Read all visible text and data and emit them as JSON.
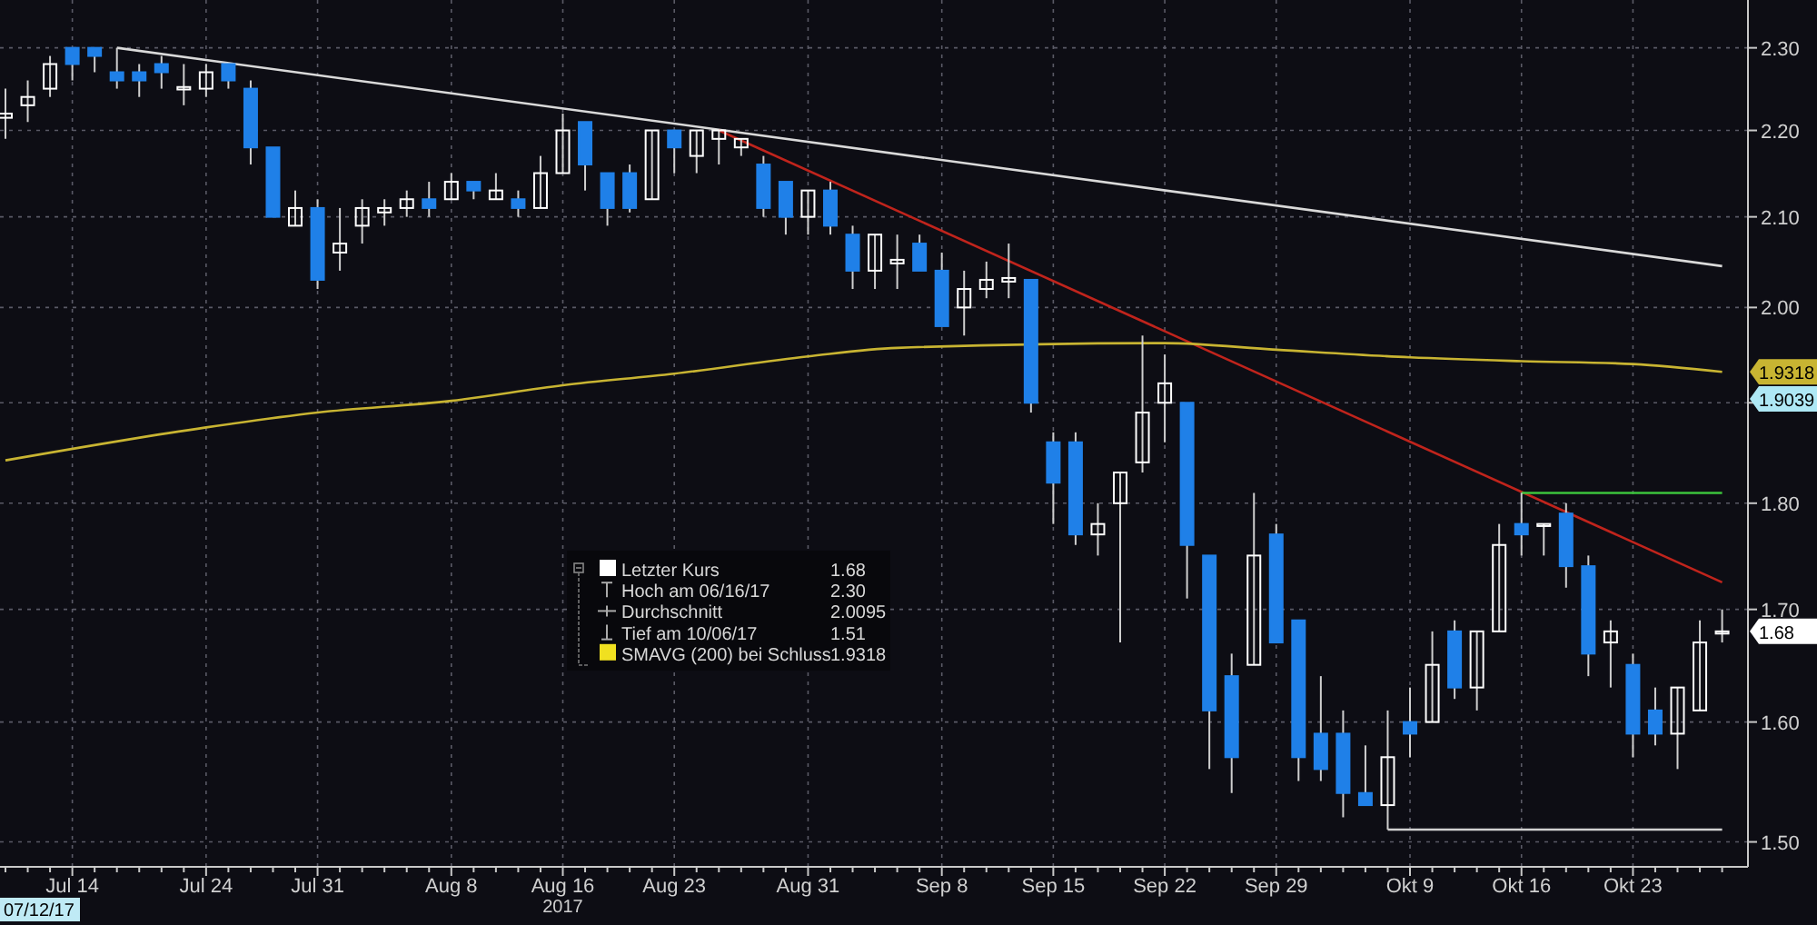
{
  "chart_data": {
    "type": "candlestick",
    "log": true,
    "grid": true,
    "ylim": [
      1.48,
      2.36
    ],
    "yticks": [
      {
        "value": 1.5,
        "label": "1.50"
      },
      {
        "value": 1.6,
        "label": "1.60"
      },
      {
        "value": 1.7,
        "label": "1.70"
      },
      {
        "value": 1.8,
        "label": "1.80"
      },
      {
        "value": 1.9,
        "label": null
      },
      {
        "value": 2,
        "label": "2.00"
      },
      {
        "value": 2.1,
        "label": "2.10"
      },
      {
        "value": 2.2,
        "label": "2.20"
      },
      {
        "value": 2.3,
        "label": "2.30"
      }
    ],
    "colors": [
      "#ffffff",
      "#ffffff",
      "#ffffff",
      "#1f80e8",
      "#1f80e8",
      "#1f80e8",
      "#1f80e8",
      "#1f80e8",
      "#ffffff",
      "#ffffff",
      "#1f80e8",
      "#1f80e8",
      "#1f80e8",
      "#ffffff",
      "#1f80e8",
      "#ffffff",
      "#ffffff",
      "#ffffff",
      "#ffffff",
      "#1f80e8",
      "#ffffff",
      "#1f80e8",
      "#ffffff",
      "#1f80e8",
      "#ffffff",
      "#ffffff",
      "#1f80e8",
      "#1f80e8",
      "#1f80e8",
      "#ffffff",
      "#1f80e8",
      "#ffffff",
      "#ffffff",
      "#ffffff",
      "#1f80e8",
      "#1f80e8",
      "#ffffff",
      "#1f80e8",
      "#1f80e8",
      "#ffffff",
      "#ffffff",
      "#1f80e8",
      "#1f80e8",
      "#ffffff",
      "#ffffff",
      "#ffffff",
      "#1f80e8",
      "#1f80e8",
      "#1f80e8",
      "#ffffff",
      "#ffffff",
      "#ffffff",
      "#ffffff",
      "#1f80e8",
      "#1f80e8",
      "#1f80e8",
      "#ffffff",
      "#1f80e8",
      "#1f80e8",
      "#1f80e8",
      "#1f80e8",
      "#1f80e8",
      "#ffffff",
      "#1f80e8",
      "#ffffff",
      "#1f80e8",
      "#ffffff",
      "#ffffff",
      "#1f80e8",
      "#ffffff",
      "#1f80e8",
      "#1f80e8",
      "#ffffff",
      "#1f80e8",
      "#1f80e8",
      "#ffffff",
      "#ffffff",
      "#ffffff"
    ],
    "categories": [
      null,
      null,
      null,
      "Jul 14",
      null,
      null,
      null,
      null,
      null,
      "Jul 24",
      null,
      null,
      null,
      null,
      "Jul 31",
      null,
      null,
      null,
      null,
      null,
      "Aug 8",
      null,
      null,
      null,
      null,
      "Aug 16",
      null,
      null,
      null,
      null,
      "Aug 23",
      null,
      null,
      null,
      null,
      null,
      "Aug 31",
      null,
      null,
      null,
      null,
      null,
      "Sep 8",
      null,
      null,
      null,
      null,
      "Sep 15",
      null,
      null,
      null,
      null,
      "Sep 22",
      null,
      null,
      null,
      null,
      "Sep 29",
      null,
      null,
      null,
      null,
      null,
      "Okt 9",
      null,
      null,
      null,
      null,
      "Okt 16",
      null,
      null,
      null,
      null,
      "Okt 23",
      null,
      null,
      null,
      null
    ],
    "ohlc": [
      [
        2.215,
        2.25,
        2.19,
        2.22
      ],
      [
        2.23,
        2.26,
        2.21,
        2.24
      ],
      [
        2.25,
        2.29,
        2.24,
        2.28
      ],
      [
        2.3,
        2.3,
        2.26,
        2.28
      ],
      [
        2.3,
        2.3,
        2.27,
        2.29
      ],
      [
        2.27,
        2.3,
        2.25,
        2.26
      ],
      [
        2.27,
        2.28,
        2.24,
        2.26
      ],
      [
        2.28,
        2.29,
        2.25,
        2.27
      ],
      [
        2.249,
        2.28,
        2.23,
        2.252
      ],
      [
        2.25,
        2.28,
        2.24,
        2.27
      ],
      [
        2.28,
        2.28,
        2.25,
        2.26
      ],
      [
        2.25,
        2.26,
        2.16,
        2.18
      ],
      [
        2.18,
        2.18,
        2.1,
        2.1
      ],
      [
        2.09,
        2.13,
        2.09,
        2.11
      ],
      [
        2.11,
        2.12,
        2.02,
        2.03
      ],
      [
        2.06,
        2.11,
        2.04,
        2.07
      ],
      [
        2.09,
        2.12,
        2.07,
        2.11
      ],
      [
        2.105,
        2.12,
        2.09,
        2.11
      ],
      [
        2.11,
        2.13,
        2.1,
        2.12
      ],
      [
        2.12,
        2.14,
        2.1,
        2.11
      ],
      [
        2.12,
        2.15,
        2.12,
        2.14
      ],
      [
        2.14,
        2.14,
        2.12,
        2.13
      ],
      [
        2.12,
        2.15,
        2.12,
        2.13
      ],
      [
        2.12,
        2.13,
        2.1,
        2.11
      ],
      [
        2.11,
        2.17,
        2.11,
        2.15
      ],
      [
        2.15,
        2.22,
        2.15,
        2.2
      ],
      [
        2.21,
        2.21,
        2.13,
        2.16
      ],
      [
        2.15,
        2.15,
        2.09,
        2.11
      ],
      [
        2.15,
        2.16,
        2.105,
        2.11
      ],
      [
        2.12,
        2.2,
        2.12,
        2.2
      ],
      [
        2.2,
        2.2,
        2.15,
        2.18
      ],
      [
        2.17,
        2.2,
        2.15,
        2.2
      ],
      [
        2.19,
        2.2,
        2.16,
        2.2
      ],
      [
        2.18,
        2.19,
        2.17,
        2.19
      ],
      [
        2.16,
        2.17,
        2.1,
        2.11
      ],
      [
        2.14,
        2.14,
        2.08,
        2.1
      ],
      [
        2.1,
        2.13,
        2.08,
        2.13
      ],
      [
        2.13,
        2.14,
        2.08,
        2.09
      ],
      [
        2.08,
        2.09,
        2.02,
        2.04
      ],
      [
        2.04,
        2.08,
        2.02,
        2.08
      ],
      [
        2.048,
        2.08,
        2.02,
        2.052
      ],
      [
        2.07,
        2.08,
        2.04,
        2.04
      ],
      [
        2.04,
        2.06,
        1.98,
        1.98
      ],
      [
        2,
        2.04,
        1.97,
        2.02
      ],
      [
        2.02,
        2.05,
        2.01,
        2.03
      ],
      [
        2.028,
        2.07,
        2.01,
        2.032
      ],
      [
        2.03,
        2.03,
        1.89,
        1.9
      ],
      [
        1.86,
        1.87,
        1.78,
        1.82
      ],
      [
        1.86,
        1.87,
        1.76,
        1.77
      ],
      [
        1.77,
        1.8,
        1.75,
        1.78
      ],
      [
        1.8,
        1.83,
        1.67,
        1.83
      ],
      [
        1.84,
        1.97,
        1.83,
        1.89
      ],
      [
        1.9,
        1.95,
        1.86,
        1.92
      ],
      [
        1.9,
        1.9,
        1.71,
        1.76
      ],
      [
        1.75,
        1.75,
        1.56,
        1.61
      ],
      [
        1.64,
        1.66,
        1.54,
        1.57
      ],
      [
        1.65,
        1.81,
        1.65,
        1.75
      ],
      [
        1.77,
        1.78,
        1.67,
        1.67
      ],
      [
        1.69,
        1.69,
        1.55,
        1.57
      ],
      [
        1.59,
        1.64,
        1.55,
        1.56
      ],
      [
        1.59,
        1.61,
        1.52,
        1.54
      ],
      [
        1.54,
        1.58,
        1.53,
        1.53
      ],
      [
        1.53,
        1.61,
        1.51,
        1.57
      ],
      [
        1.6,
        1.63,
        1.57,
        1.59
      ],
      [
        1.6,
        1.68,
        1.6,
        1.65
      ],
      [
        1.68,
        1.69,
        1.62,
        1.63
      ],
      [
        1.63,
        1.68,
        1.61,
        1.68
      ],
      [
        1.68,
        1.78,
        1.68,
        1.76
      ],
      [
        1.78,
        1.81,
        1.75,
        1.77
      ],
      [
        1.778,
        1.78,
        1.75,
        1.78
      ],
      [
        1.79,
        1.8,
        1.72,
        1.74
      ],
      [
        1.74,
        1.75,
        1.64,
        1.66
      ],
      [
        1.67,
        1.69,
        1.63,
        1.68
      ],
      [
        1.65,
        1.66,
        1.57,
        1.59
      ],
      [
        1.61,
        1.63,
        1.58,
        1.59
      ],
      [
        1.59,
        1.63,
        1.56,
        1.63
      ],
      [
        1.61,
        1.69,
        1.61,
        1.67
      ],
      [
        1.678,
        1.7,
        1.67,
        1.68
      ]
    ],
    "series": [
      {
        "type": "line",
        "color": "#d9d9d9",
        "values": [
          null,
          null,
          null,
          null,
          null,
          2.3,
          null,
          null,
          null,
          null,
          null,
          null,
          null,
          null,
          null,
          null,
          null,
          null,
          null,
          null,
          null,
          null,
          null,
          null,
          null,
          null,
          null,
          null,
          null,
          null,
          null,
          null,
          null,
          null,
          null,
          null,
          null,
          null,
          null,
          null,
          null,
          null,
          null,
          null,
          null,
          null,
          null,
          null,
          null,
          null,
          null,
          null,
          null,
          null,
          null,
          null,
          null,
          null,
          null,
          null,
          null,
          null,
          null,
          null,
          null,
          null,
          null,
          null,
          null,
          null,
          null,
          null,
          null,
          null,
          null,
          null,
          null,
          2.045
        ]
      },
      {
        "type": "line",
        "color": "#c0241c",
        "values": [
          null,
          null,
          null,
          null,
          null,
          null,
          null,
          null,
          null,
          null,
          null,
          null,
          null,
          null,
          null,
          null,
          null,
          null,
          null,
          null,
          null,
          null,
          null,
          null,
          null,
          null,
          null,
          null,
          null,
          null,
          null,
          null,
          2.2,
          null,
          null,
          null,
          null,
          null,
          null,
          null,
          null,
          null,
          null,
          null,
          null,
          null,
          null,
          null,
          null,
          null,
          null,
          null,
          null,
          null,
          null,
          null,
          null,
          null,
          null,
          null,
          null,
          null,
          null,
          null,
          null,
          null,
          null,
          null,
          null,
          null,
          null,
          null,
          null,
          null,
          null,
          null,
          null,
          1.725
        ]
      },
      {
        "type": "line",
        "color": "#c8b432",
        "values": [
          1.842,
          null,
          null,
          null,
          null,
          null,
          null,
          null,
          null,
          1.875,
          null,
          null,
          null,
          null,
          1.89,
          null,
          null,
          null,
          null,
          null,
          1.902,
          null,
          null,
          null,
          null,
          1.918,
          null,
          null,
          null,
          null,
          1.93,
          null,
          null,
          null,
          null,
          null,
          1.948,
          null,
          null,
          null,
          1.957,
          null,
          null,
          null,
          null,
          null,
          null,
          null,
          null,
          null,
          null,
          null,
          1.962,
          null,
          null,
          null,
          null,
          1.955,
          null,
          null,
          null,
          null,
          null,
          1.947,
          null,
          null,
          null,
          null,
          1.943,
          null,
          null,
          null,
          null,
          1.94,
          null,
          null,
          null,
          1.9318
        ]
      },
      {
        "type": "line",
        "color": "#3cc43c",
        "values": [
          null,
          null,
          null,
          null,
          null,
          null,
          null,
          null,
          null,
          null,
          null,
          null,
          null,
          null,
          null,
          null,
          null,
          null,
          null,
          null,
          null,
          null,
          null,
          null,
          null,
          null,
          null,
          null,
          null,
          null,
          null,
          null,
          null,
          null,
          null,
          null,
          null,
          null,
          null,
          null,
          null,
          null,
          null,
          null,
          null,
          null,
          null,
          null,
          null,
          null,
          null,
          null,
          null,
          null,
          null,
          null,
          null,
          null,
          null,
          null,
          null,
          null,
          null,
          null,
          null,
          null,
          null,
          null,
          1.81,
          null,
          null,
          null,
          null,
          null,
          null,
          null,
          null,
          1.81
        ]
      },
      {
        "type": "line",
        "color": "#d0d0d0",
        "values": [
          null,
          null,
          null,
          null,
          null,
          null,
          null,
          null,
          null,
          null,
          null,
          null,
          null,
          null,
          null,
          null,
          null,
          null,
          null,
          null,
          null,
          null,
          null,
          null,
          null,
          null,
          null,
          null,
          null,
          null,
          null,
          null,
          null,
          null,
          null,
          null,
          null,
          null,
          null,
          null,
          null,
          null,
          null,
          null,
          null,
          null,
          null,
          null,
          null,
          null,
          null,
          null,
          null,
          null,
          null,
          null,
          null,
          null,
          null,
          null,
          null,
          null,
          1.51,
          null,
          null,
          null,
          null,
          null,
          null,
          null,
          null,
          null,
          null,
          null,
          null,
          null,
          null,
          1.51
        ]
      }
    ],
    "annotations": [
      "Letzter Kurs",
      "1.68",
      "Hoch am 06/16/17",
      "2.30",
      "Durchschnitt",
      "2.0095",
      "Tief am 10/06/17",
      "1.51",
      "SMAVG (200) bei Schluss",
      "1.9318",
      "2017",
      "07/12/17",
      "1.9318",
      "1.9039",
      "1.68"
    ]
  }
}
